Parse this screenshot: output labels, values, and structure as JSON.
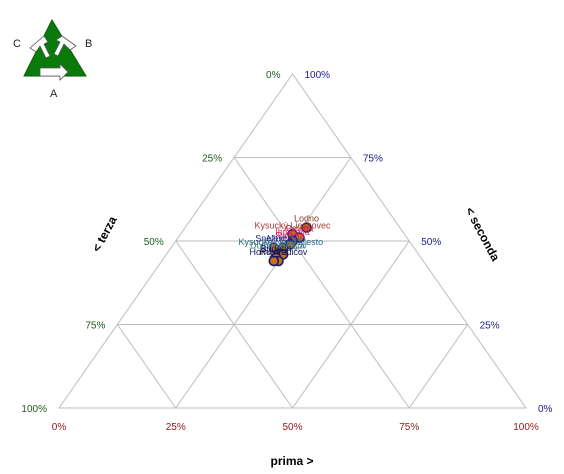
{
  "legend_icon": {
    "name": "ternary-cycle-icon",
    "labels": {
      "a": "A",
      "b": "B",
      "c": "C"
    },
    "color": "#0a7a0a"
  },
  "colors": {
    "prima": "#8b1a1a",
    "seconda": "#1a1a8b",
    "terza": "#1f5a1f",
    "grid": "#bdbdbd"
  },
  "chart_data": {
    "type": "scatter",
    "subtype": "ternary",
    "axes": {
      "prima": {
        "title": "prima >",
        "ticks": [
          "0%",
          "25%",
          "50%",
          "75%",
          "100%"
        ]
      },
      "seconda": {
        "title": "< seconda",
        "ticks": [
          "0%",
          "25%",
          "50%",
          "75%",
          "100%"
        ]
      },
      "terza": {
        "title": "< terza",
        "ticks": [
          "0%",
          "25%",
          "50%",
          "75%",
          "100%"
        ]
      }
    },
    "grid": true,
    "points": [
      {
        "label": "Lodno",
        "prima": 0.26,
        "seconda": 0.54,
        "terza": 0.2,
        "color": "#8b3a1a"
      },
      {
        "label": "Kysucký Lieskovec",
        "prima": 0.24,
        "seconda": 0.52,
        "terza": 0.24,
        "color": "#b03a3a"
      },
      {
        "label": "Povina",
        "prima": 0.26,
        "seconda": 0.51,
        "terza": 0.23,
        "color": "#c02040"
      },
      {
        "label": "Ihráčová",
        "prima": 0.25,
        "seconda": 0.5,
        "terza": 0.25,
        "color": "#d03060"
      },
      {
        "label": "Radoľa",
        "prima": 0.25,
        "seconda": 0.49,
        "terza": 0.26,
        "color": "#e0206a"
      },
      {
        "label": "Kysucké Nové Mesto",
        "prima": 0.24,
        "seconda": 0.47,
        "terza": 0.29,
        "color": "#2a6a8a"
      },
      {
        "label": "Nesluša",
        "prima": 0.24,
        "seconda": 0.48,
        "terza": 0.28,
        "color": "#3a5aa0"
      },
      {
        "label": "Snežnica",
        "prima": 0.22,
        "seconda": 0.48,
        "terza": 0.3,
        "color": "#1a1a7a"
      },
      {
        "label": "Dolný Vadičov",
        "prima": 0.24,
        "seconda": 0.46,
        "terza": 0.3,
        "color": "#3a8a6a"
      },
      {
        "label": "Ochodnica",
        "prima": 0.25,
        "seconda": 0.46,
        "terza": 0.29,
        "color": "#4a7aa0"
      },
      {
        "label": "Budatín",
        "prima": 0.24,
        "seconda": 0.45,
        "terza": 0.31,
        "color": "#1a1a6a"
      },
      {
        "label": "Horný Vadičov",
        "prima": 0.25,
        "seconda": 0.44,
        "terza": 0.31,
        "color": "#1a1a5a"
      },
      {
        "label": "Rudina",
        "prima": 0.24,
        "seconda": 0.44,
        "terza": 0.32,
        "color": "#1a1a4a"
      }
    ]
  }
}
